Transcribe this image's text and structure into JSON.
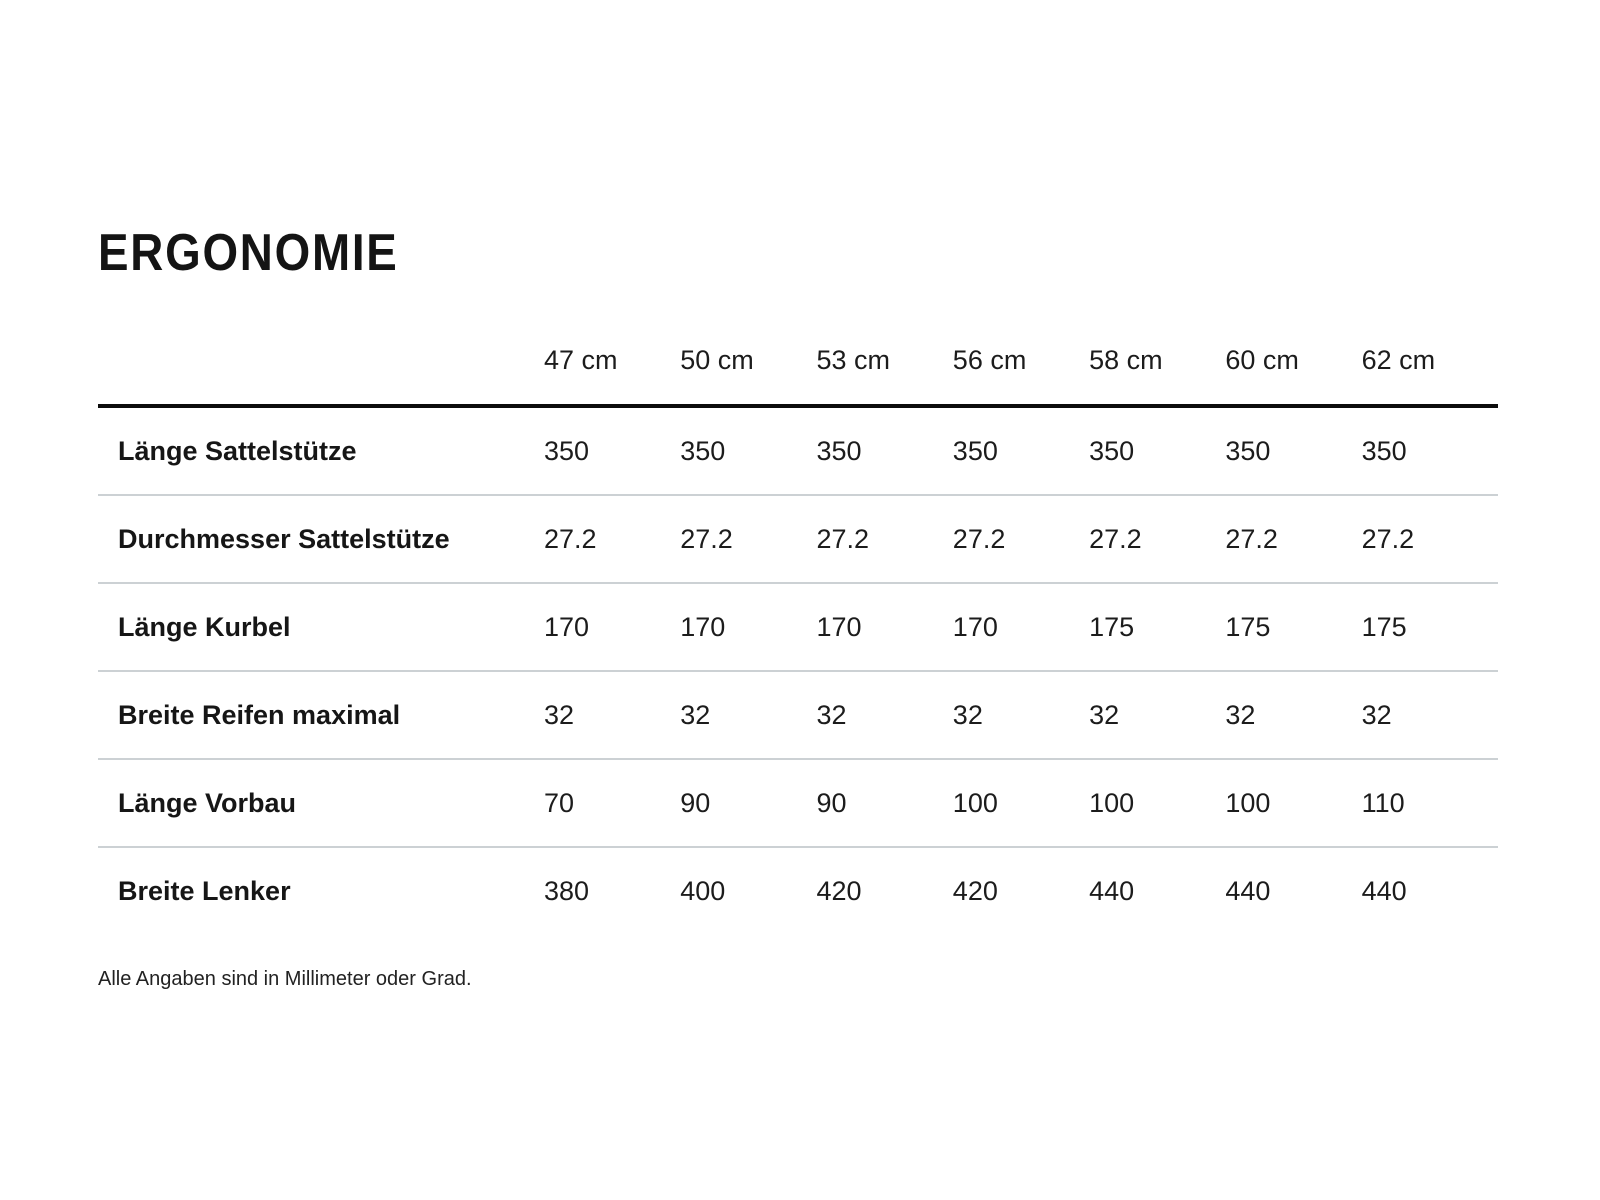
{
  "page": {
    "title": "ERGONOMIE",
    "footnote": "Alle Angaben sind in Millimeter oder Grad."
  },
  "table": {
    "columns": [
      "47 cm",
      "50 cm",
      "53 cm",
      "56 cm",
      "58 cm",
      "60 cm",
      "62 cm"
    ],
    "rows": [
      {
        "label": "Länge Sattelstütze",
        "values": [
          "350",
          "350",
          "350",
          "350",
          "350",
          "350",
          "350"
        ]
      },
      {
        "label": "Durchmesser Sattelstütze",
        "values": [
          "27.2",
          "27.2",
          "27.2",
          "27.2",
          "27.2",
          "27.2",
          "27.2"
        ]
      },
      {
        "label": "Länge Kurbel",
        "values": [
          "170",
          "170",
          "170",
          "170",
          "175",
          "175",
          "175"
        ]
      },
      {
        "label": "Breite Reifen maximal",
        "values": [
          "32",
          "32",
          "32",
          "32",
          "32",
          "32",
          "32"
        ]
      },
      {
        "label": "Länge Vorbau",
        "values": [
          "70",
          "90",
          "90",
          "100",
          "100",
          "100",
          "110"
        ]
      },
      {
        "label": "Breite Lenker",
        "values": [
          "380",
          "400",
          "420",
          "420",
          "440",
          "440",
          "440"
        ]
      }
    ]
  },
  "colors": {
    "text": "#1c1c1c",
    "divider": "#ccd1d4",
    "header_rule": "#0c0c0c",
    "background": "#ffffff"
  }
}
